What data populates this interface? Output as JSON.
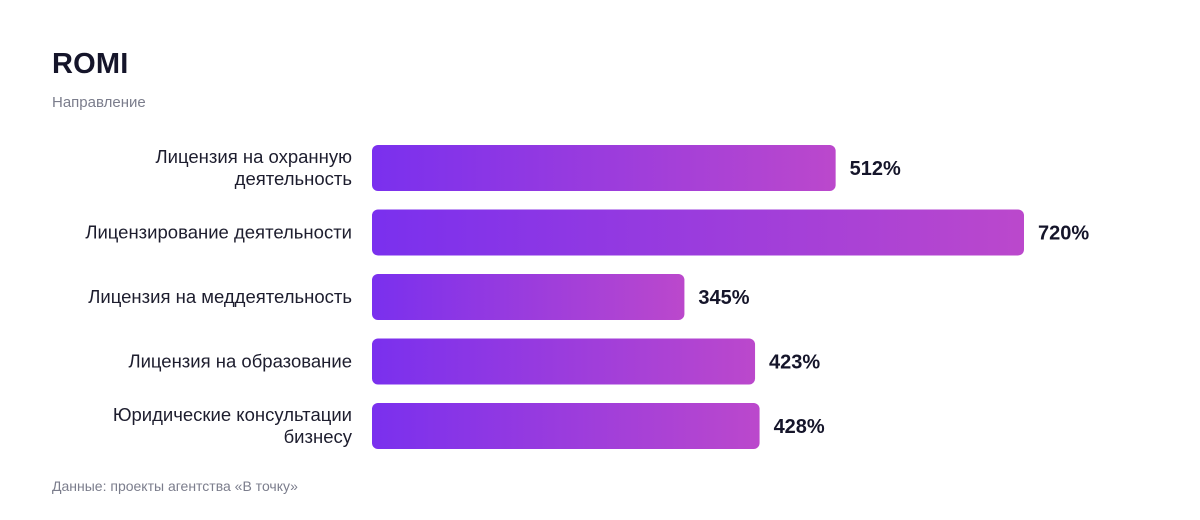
{
  "header": {
    "title": "ROMI",
    "subtitle": "Направление"
  },
  "footer": {
    "source": "Данные: проекты агентства «В точку»"
  },
  "colors": {
    "bar_start": "#7a30ee",
    "bar_end": "#bb48cc"
  },
  "chart_data": {
    "type": "bar",
    "orientation": "horizontal",
    "title": "ROMI",
    "subtitle": "Направление",
    "categories": [
      [
        "Лицензия на охранную",
        "деятельность"
      ],
      [
        "Лицензирование деятельности"
      ],
      [
        "Лицензия на меддеятельность"
      ],
      [
        "Лицензия на образование"
      ],
      [
        "Юридические консультации",
        "бизнесу"
      ]
    ],
    "values": [
      512,
      720,
      345,
      423,
      428
    ],
    "value_labels": [
      "512%",
      "720%",
      "345%",
      "423%",
      "428%"
    ],
    "unit": "%",
    "xlim": [
      0,
      720
    ],
    "grid": false,
    "legend": "none"
  }
}
